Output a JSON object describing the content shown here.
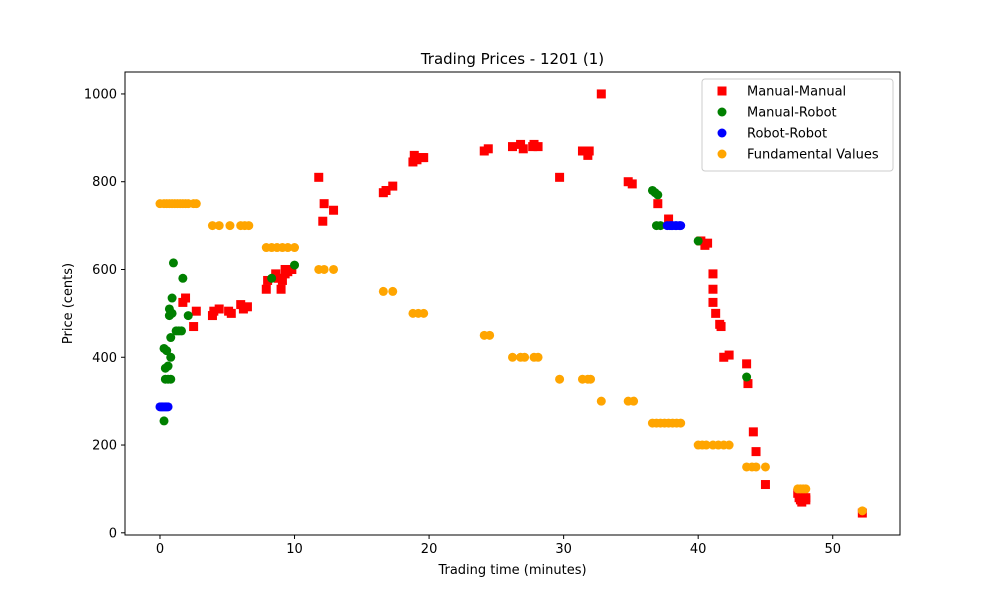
{
  "chart_data": {
    "type": "scatter",
    "title": "Trading Prices - 1201 (1)",
    "xlabel": "Trading time (minutes)",
    "ylabel": "Price (cents)",
    "xlim": [
      -2.6,
      55
    ],
    "ylim": [
      -5,
      1050
    ],
    "xticks": [
      0,
      10,
      20,
      30,
      40,
      50
    ],
    "yticks": [
      0,
      200,
      400,
      600,
      800,
      1000
    ],
    "grid": false,
    "legend_position": "top-right",
    "series": [
      {
        "name": "Manual-Manual",
        "color": "#ff0000",
        "marker": "square",
        "points": [
          [
            1.7,
            525
          ],
          [
            1.9,
            535
          ],
          [
            2.5,
            470
          ],
          [
            2.7,
            505
          ],
          [
            3.9,
            495
          ],
          [
            4.0,
            505
          ],
          [
            4.4,
            510
          ],
          [
            5.1,
            505
          ],
          [
            5.3,
            500
          ],
          [
            6.0,
            520
          ],
          [
            6.2,
            510
          ],
          [
            6.5,
            515
          ],
          [
            7.9,
            555
          ],
          [
            8.0,
            575
          ],
          [
            8.6,
            590
          ],
          [
            8.8,
            580
          ],
          [
            9.0,
            555
          ],
          [
            9.1,
            575
          ],
          [
            9.3,
            590
          ],
          [
            9.3,
            600
          ],
          [
            9.5,
            595
          ],
          [
            9.8,
            600
          ],
          [
            11.8,
            810
          ],
          [
            12.1,
            710
          ],
          [
            12.2,
            750
          ],
          [
            12.9,
            735
          ],
          [
            16.6,
            775
          ],
          [
            16.8,
            780
          ],
          [
            17.3,
            790
          ],
          [
            18.8,
            845
          ],
          [
            18.9,
            860
          ],
          [
            19.1,
            850
          ],
          [
            19.5,
            855
          ],
          [
            19.6,
            855
          ],
          [
            24.1,
            870
          ],
          [
            24.4,
            875
          ],
          [
            26.2,
            880
          ],
          [
            26.8,
            885
          ],
          [
            27.0,
            875
          ],
          [
            27.7,
            880
          ],
          [
            27.8,
            885
          ],
          [
            28.1,
            880
          ],
          [
            29.7,
            810
          ],
          [
            31.4,
            870
          ],
          [
            31.8,
            860
          ],
          [
            31.9,
            870
          ],
          [
            32.8,
            1000
          ],
          [
            34.8,
            800
          ],
          [
            35.1,
            795
          ],
          [
            37.0,
            750
          ],
          [
            37.8,
            715
          ],
          [
            40.2,
            665
          ],
          [
            40.5,
            655
          ],
          [
            40.7,
            660
          ],
          [
            41.1,
            590
          ],
          [
            41.1,
            555
          ],
          [
            41.1,
            525
          ],
          [
            41.3,
            500
          ],
          [
            41.6,
            475
          ],
          [
            41.7,
            470
          ],
          [
            41.9,
            400
          ],
          [
            42.3,
            405
          ],
          [
            43.6,
            385
          ],
          [
            43.7,
            340
          ],
          [
            44.1,
            230
          ],
          [
            44.3,
            185
          ],
          [
            45.0,
            110
          ],
          [
            47.4,
            90
          ],
          [
            47.5,
            80
          ],
          [
            47.6,
            75
          ],
          [
            47.7,
            70
          ],
          [
            47.8,
            85
          ],
          [
            48.0,
            80
          ],
          [
            48.0,
            75
          ],
          [
            52.2,
            45
          ]
        ]
      },
      {
        "name": "Manual-Robot",
        "color": "#008000",
        "marker": "circle",
        "points": [
          [
            0.3,
            420
          ],
          [
            0.3,
            255
          ],
          [
            0.4,
            350
          ],
          [
            0.4,
            375
          ],
          [
            0.5,
            415
          ],
          [
            0.6,
            350
          ],
          [
            0.6,
            380
          ],
          [
            0.7,
            495
          ],
          [
            0.7,
            510
          ],
          [
            0.8,
            445
          ],
          [
            0.8,
            400
          ],
          [
            0.8,
            350
          ],
          [
            0.9,
            500
          ],
          [
            0.9,
            535
          ],
          [
            1.0,
            615
          ],
          [
            1.2,
            460
          ],
          [
            1.4,
            460
          ],
          [
            1.6,
            460
          ],
          [
            1.7,
            580
          ],
          [
            2.1,
            495
          ],
          [
            8.3,
            580
          ],
          [
            10.0,
            610
          ],
          [
            36.6,
            780
          ],
          [
            36.8,
            775
          ],
          [
            36.9,
            700
          ],
          [
            37.0,
            770
          ],
          [
            37.2,
            700
          ],
          [
            40.0,
            665
          ],
          [
            43.6,
            355
          ]
        ]
      },
      {
        "name": "Robot-Robot",
        "color": "#0000ff",
        "marker": "circle",
        "points": [
          [
            0.0,
            287
          ],
          [
            0.1,
            287
          ],
          [
            0.2,
            287
          ],
          [
            0.3,
            287
          ],
          [
            0.4,
            287
          ],
          [
            0.5,
            287
          ],
          [
            0.6,
            287
          ],
          [
            37.7,
            700
          ],
          [
            37.9,
            700
          ],
          [
            38.0,
            700
          ],
          [
            38.1,
            700
          ],
          [
            38.3,
            700
          ],
          [
            38.4,
            700
          ],
          [
            38.6,
            700
          ],
          [
            38.7,
            700
          ]
        ]
      },
      {
        "name": "Fundamental Values",
        "color": "#ffa500",
        "marker": "circle",
        "points": [
          [
            0.0,
            750
          ],
          [
            0.3,
            750
          ],
          [
            0.5,
            750
          ],
          [
            0.7,
            750
          ],
          [
            0.9,
            750
          ],
          [
            1.1,
            750
          ],
          [
            1.3,
            750
          ],
          [
            1.5,
            750
          ],
          [
            1.7,
            750
          ],
          [
            1.9,
            750
          ],
          [
            2.1,
            750
          ],
          [
            2.5,
            750
          ],
          [
            2.7,
            750
          ],
          [
            3.9,
            700
          ],
          [
            4.4,
            700
          ],
          [
            5.2,
            700
          ],
          [
            6.0,
            700
          ],
          [
            6.3,
            700
          ],
          [
            6.6,
            700
          ],
          [
            7.9,
            650
          ],
          [
            8.3,
            650
          ],
          [
            8.7,
            650
          ],
          [
            9.1,
            650
          ],
          [
            9.5,
            650
          ],
          [
            10.0,
            650
          ],
          [
            11.8,
            600
          ],
          [
            12.2,
            600
          ],
          [
            12.9,
            600
          ],
          [
            16.6,
            550
          ],
          [
            17.3,
            550
          ],
          [
            18.8,
            500
          ],
          [
            19.2,
            500
          ],
          [
            19.6,
            500
          ],
          [
            24.1,
            450
          ],
          [
            24.5,
            450
          ],
          [
            26.2,
            400
          ],
          [
            26.8,
            400
          ],
          [
            27.1,
            400
          ],
          [
            27.8,
            400
          ],
          [
            28.1,
            400
          ],
          [
            29.7,
            350
          ],
          [
            31.4,
            350
          ],
          [
            31.8,
            350
          ],
          [
            32.0,
            350
          ],
          [
            32.8,
            300
          ],
          [
            34.8,
            300
          ],
          [
            35.2,
            300
          ],
          [
            36.6,
            250
          ],
          [
            36.9,
            250
          ],
          [
            37.2,
            250
          ],
          [
            37.5,
            250
          ],
          [
            37.8,
            250
          ],
          [
            38.1,
            250
          ],
          [
            38.4,
            250
          ],
          [
            38.7,
            250
          ],
          [
            40.0,
            200
          ],
          [
            40.3,
            200
          ],
          [
            40.6,
            200
          ],
          [
            41.1,
            200
          ],
          [
            41.5,
            200
          ],
          [
            41.9,
            200
          ],
          [
            42.3,
            200
          ],
          [
            43.6,
            150
          ],
          [
            44.0,
            150
          ],
          [
            44.3,
            150
          ],
          [
            45.0,
            150
          ],
          [
            47.4,
            100
          ],
          [
            47.6,
            100
          ],
          [
            47.8,
            100
          ],
          [
            48.0,
            100
          ],
          [
            52.2,
            50
          ]
        ]
      }
    ]
  }
}
